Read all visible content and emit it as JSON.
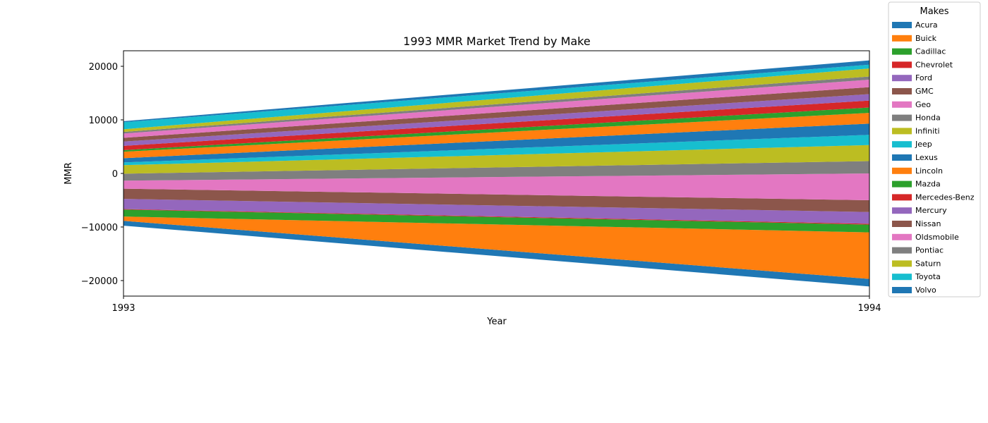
{
  "chart_data": {
    "type": "streamgraph",
    "baseline": "sym",
    "title": "1993 MMR Market Trend by Make",
    "x_label": "Year",
    "y_label": "MMR",
    "legend_title": "Makes",
    "legend_position": "outside-upper-right",
    "x": [
      1993,
      1994
    ],
    "xlim": [
      1993,
      1994
    ],
    "xticks": [
      1993,
      1994
    ],
    "ylim": [
      -22900,
      22900
    ],
    "yticks": [
      {
        "value": -20000,
        "label": "−20000"
      },
      {
        "value": -10000,
        "label": "−10000"
      },
      0,
      10000,
      20000
    ],
    "series": [
      {
        "name": "Acura",
        "color": "#1f77b4",
        "values": [
          900,
          1400
        ]
      },
      {
        "name": "Buick",
        "color": "#ff7f0e",
        "values": [
          800,
          8700
        ]
      },
      {
        "name": "Cadillac",
        "color": "#2ca02c",
        "values": [
          1300,
          1450
        ]
      },
      {
        "name": "Chevrolet",
        "color": "#d62728",
        "values": [
          100,
          150
        ]
      },
      {
        "name": "Ford",
        "color": "#9467bd",
        "values": [
          1900,
          2200
        ]
      },
      {
        "name": "GMC",
        "color": "#8c564b",
        "values": [
          1900,
          2200
        ]
      },
      {
        "name": "Geo",
        "color": "#e377c2",
        "values": [
          1500,
          5000
        ]
      },
      {
        "name": "Honda",
        "color": "#7f7f7f",
        "values": [
          1300,
          2300
        ]
      },
      {
        "name": "Infiniti",
        "color": "#bcbd22",
        "values": [
          1600,
          3000
        ]
      },
      {
        "name": "Jeep",
        "color": "#17becf",
        "values": [
          500,
          1900
        ]
      },
      {
        "name": "Lexus",
        "color": "#1f77b4",
        "values": [
          800,
          2100
        ]
      },
      {
        "name": "Lincoln",
        "color": "#ff7f0e",
        "values": [
          1200,
          2000
        ]
      },
      {
        "name": "Mazda",
        "color": "#2ca02c",
        "values": [
          300,
          1000
        ]
      },
      {
        "name": "Mercedes-Benz",
        "color": "#d62728",
        "values": [
          800,
          1300
        ]
      },
      {
        "name": "Mercury",
        "color": "#9467bd",
        "values": [
          800,
          1200
        ]
      },
      {
        "name": "Nissan",
        "color": "#8c564b",
        "values": [
          700,
          1300
        ]
      },
      {
        "name": "Oldsmobile",
        "color": "#e377c2",
        "values": [
          800,
          1400
        ]
      },
      {
        "name": "Pontiac",
        "color": "#7f7f7f",
        "values": [
          300,
          600
        ]
      },
      {
        "name": "Saturn",
        "color": "#bcbd22",
        "values": [
          500,
          1500
        ]
      },
      {
        "name": "Toyota",
        "color": "#17becf",
        "values": [
          1300,
          700
        ]
      },
      {
        "name": "Volvo",
        "color": "#1f77b4",
        "values": [
          200,
          800
        ]
      }
    ]
  }
}
